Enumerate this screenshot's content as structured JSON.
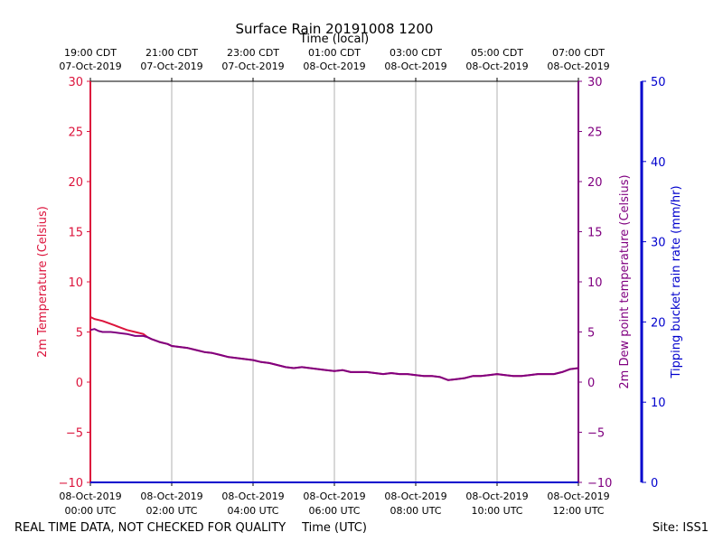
{
  "chart_data": {
    "type": "line",
    "title": "Surface Rain 20191008 1200",
    "top_axis_title": "Time (local)",
    "bottom_axis_title": "Time (UTC)",
    "footer_left": "REAL TIME DATA, NOT CHECKED FOR QUALITY",
    "footer_right": "Site: ISS1",
    "x_range_hours": [
      0,
      12
    ],
    "x_ticks_utc": [
      {
        "h": 0,
        "line1": "08-Oct-2019",
        "line2": "00:00 UTC"
      },
      {
        "h": 2,
        "line1": "08-Oct-2019",
        "line2": "02:00 UTC"
      },
      {
        "h": 4,
        "line1": "08-Oct-2019",
        "line2": "04:00 UTC"
      },
      {
        "h": 6,
        "line1": "08-Oct-2019",
        "line2": "06:00 UTC"
      },
      {
        "h": 8,
        "line1": "08-Oct-2019",
        "line2": "08:00 UTC"
      },
      {
        "h": 10,
        "line1": "08-Oct-2019",
        "line2": "10:00 UTC"
      },
      {
        "h": 12,
        "line1": "08-Oct-2019",
        "line2": "12:00 UTC"
      }
    ],
    "x_ticks_local": [
      {
        "h": 0,
        "line1": "19:00 CDT",
        "line2": "07-Oct-2019"
      },
      {
        "h": 2,
        "line1": "21:00 CDT",
        "line2": "07-Oct-2019"
      },
      {
        "h": 4,
        "line1": "23:00 CDT",
        "line2": "07-Oct-2019"
      },
      {
        "h": 6,
        "line1": "01:00 CDT",
        "line2": "08-Oct-2019"
      },
      {
        "h": 8,
        "line1": "03:00 CDT",
        "line2": "08-Oct-2019"
      },
      {
        "h": 10,
        "line1": "05:00 CDT",
        "line2": "08-Oct-2019"
      },
      {
        "h": 12,
        "line1": "07:00 CDT",
        "line2": "08-Oct-2019"
      }
    ],
    "axes": {
      "left": {
        "label": "2m Temperature (Celsius)",
        "ylim": [
          -10,
          30
        ],
        "ticks": [
          -10,
          -5,
          0,
          5,
          10,
          15,
          20,
          25,
          30
        ],
        "color": "#dc143c"
      },
      "right1": {
        "label": "2m Dew point temperature (Celsius)",
        "ylim": [
          -10,
          30
        ],
        "ticks": [
          -10,
          -5,
          0,
          5,
          10,
          15,
          20,
          25,
          30
        ],
        "color": "#800080"
      },
      "right2": {
        "label": "Tipping bucket rain rate (mm/hr)",
        "ylim": [
          0,
          50
        ],
        "ticks": [
          0,
          10,
          20,
          30,
          40,
          50
        ],
        "color": "#0000cd"
      }
    },
    "series": [
      {
        "name": "2m Temperature",
        "color": "#dc143c",
        "axis": "left",
        "x": [
          0,
          0.1,
          0.2,
          0.3,
          0.5,
          0.7,
          0.9,
          1.1,
          1.3,
          1.4,
          1.5,
          1.7,
          1.9,
          2.0,
          2.2,
          2.4,
          2.6,
          2.8,
          3.0,
          3.2,
          3.4,
          3.6,
          3.8,
          4.0,
          4.2,
          4.4,
          4.6,
          4.8,
          5.0,
          5.2,
          5.4,
          5.6,
          5.8,
          6.0,
          6.2,
          6.4,
          6.6,
          6.8,
          7.0,
          7.2,
          7.4,
          7.6,
          7.8,
          8.0,
          8.2,
          8.4,
          8.6,
          8.8,
          9.0,
          9.2,
          9.4,
          9.6,
          9.8,
          10.0,
          10.2,
          10.4,
          10.6,
          10.8,
          11.0,
          11.2,
          11.4,
          11.6,
          11.8,
          12.0
        ],
        "values": [
          6.5,
          6.3,
          6.2,
          6.1,
          5.8,
          5.5,
          5.2,
          5.0,
          4.8,
          4.5,
          4.3,
          4.0,
          3.8,
          3.6,
          3.5,
          3.4,
          3.2,
          3.0,
          2.9,
          2.7,
          2.5,
          2.4,
          2.3,
          2.2,
          2.0,
          1.9,
          1.7,
          1.5,
          1.4,
          1.5,
          1.4,
          1.3,
          1.2,
          1.1,
          1.2,
          1.0,
          1.0,
          1.0,
          0.9,
          0.8,
          0.9,
          0.8,
          0.8,
          0.7,
          0.6,
          0.6,
          0.5,
          0.2,
          0.3,
          0.4,
          0.6,
          0.6,
          0.7,
          0.8,
          0.7,
          0.6,
          0.6,
          0.7,
          0.8,
          0.8,
          0.8,
          1.0,
          1.3,
          1.4
        ]
      },
      {
        "name": "2m Dew point temperature",
        "color": "#800080",
        "axis": "right1",
        "x": [
          0,
          0.1,
          0.2,
          0.3,
          0.5,
          0.7,
          0.9,
          1.1,
          1.3,
          1.4,
          1.5,
          1.7,
          1.9,
          2.0,
          2.2,
          2.4,
          2.6,
          2.8,
          3.0,
          3.2,
          3.4,
          3.6,
          3.8,
          4.0,
          4.2,
          4.4,
          4.6,
          4.8,
          5.0,
          5.2,
          5.4,
          5.6,
          5.8,
          6.0,
          6.2,
          6.4,
          6.6,
          6.8,
          7.0,
          7.2,
          7.4,
          7.6,
          7.8,
          8.0,
          8.2,
          8.4,
          8.6,
          8.8,
          9.0,
          9.2,
          9.4,
          9.6,
          9.8,
          10.0,
          10.2,
          10.4,
          10.6,
          10.8,
          11.0,
          11.2,
          11.4,
          11.6,
          11.8,
          12.0
        ],
        "values": [
          5.2,
          5.3,
          5.1,
          5.0,
          5.0,
          4.9,
          4.8,
          4.6,
          4.6,
          4.5,
          4.3,
          4.0,
          3.8,
          3.6,
          3.5,
          3.4,
          3.2,
          3.0,
          2.9,
          2.7,
          2.5,
          2.4,
          2.3,
          2.2,
          2.0,
          1.9,
          1.7,
          1.5,
          1.4,
          1.5,
          1.4,
          1.3,
          1.2,
          1.1,
          1.2,
          1.0,
          1.0,
          1.0,
          0.9,
          0.8,
          0.9,
          0.8,
          0.8,
          0.7,
          0.6,
          0.6,
          0.5,
          0.2,
          0.3,
          0.4,
          0.6,
          0.6,
          0.7,
          0.8,
          0.7,
          0.6,
          0.6,
          0.7,
          0.8,
          0.8,
          0.8,
          1.0,
          1.3,
          1.4
        ]
      },
      {
        "name": "Tipping bucket rain rate",
        "color": "#0000cd",
        "axis": "right2",
        "x": [
          0,
          12
        ],
        "values": [
          0,
          0
        ]
      }
    ]
  }
}
